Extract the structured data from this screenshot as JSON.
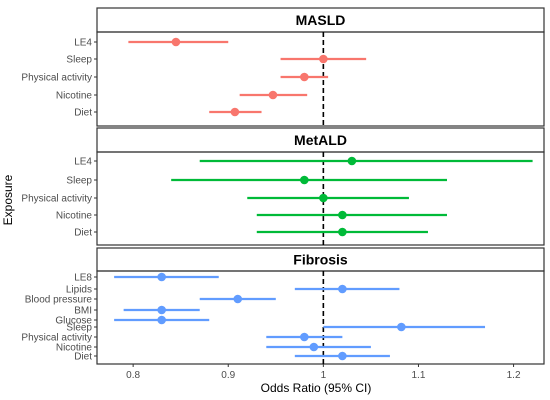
{
  "chart_data": {
    "type": "forest",
    "xlabel": "Odds Ratio (95% CI)",
    "ylabel": "Exposure",
    "x_ticks": [
      "0.8",
      "0.9",
      "1",
      "1.1",
      "1.2"
    ],
    "x_tick_values": [
      0.8,
      0.9,
      1.0,
      1.1,
      1.2
    ],
    "xlim": [
      0.762,
      1.232
    ],
    "reference_line": 1.0,
    "grid": false,
    "panels": [
      {
        "title": "MASLD",
        "color": "#F8766D",
        "rows": [
          {
            "label": "LE4",
            "or": 0.845,
            "lower": 0.795,
            "upper": 0.9
          },
          {
            "label": "Sleep",
            "or": 1.0,
            "lower": 0.955,
            "upper": 1.045
          },
          {
            "label": "Physical activity",
            "or": 0.98,
            "lower": 0.955,
            "upper": 1.005
          },
          {
            "label": "Nicotine",
            "or": 0.947,
            "lower": 0.912,
            "upper": 0.983
          },
          {
            "label": "Diet",
            "or": 0.907,
            "lower": 0.88,
            "upper": 0.935
          }
        ]
      },
      {
        "title": "MetALD",
        "color": "#00BA38",
        "rows": [
          {
            "label": "LE4",
            "or": 1.03,
            "lower": 0.87,
            "upper": 1.22
          },
          {
            "label": "Sleep",
            "or": 0.98,
            "lower": 0.84,
            "upper": 1.13
          },
          {
            "label": "Physical activity",
            "or": 1.0,
            "lower": 0.92,
            "upper": 1.09
          },
          {
            "label": "Nicotine",
            "or": 1.02,
            "lower": 0.93,
            "upper": 1.13
          },
          {
            "label": "Diet",
            "or": 1.02,
            "lower": 0.93,
            "upper": 1.11
          }
        ]
      },
      {
        "title": "Fibrosis",
        "color": "#619CFF",
        "rows": [
          {
            "label": "LE8",
            "or": 0.83,
            "lower": 0.78,
            "upper": 0.89
          },
          {
            "label": "Lipids",
            "or": 1.02,
            "lower": 0.97,
            "upper": 1.08
          },
          {
            "label": "Blood pressure",
            "or": 0.91,
            "lower": 0.87,
            "upper": 0.95
          },
          {
            "label": "BMI",
            "or": 0.83,
            "lower": 0.79,
            "upper": 0.87
          },
          {
            "label": "Glucose",
            "or": 0.83,
            "lower": 0.78,
            "upper": 0.88
          },
          {
            "label": "Sleep",
            "or": 1.082,
            "lower": 1.0,
            "upper": 1.17
          },
          {
            "label": "Physical activity",
            "or": 0.98,
            "lower": 0.94,
            "upper": 1.02
          },
          {
            "label": "Nicotine",
            "or": 0.99,
            "lower": 0.94,
            "upper": 1.05
          },
          {
            "label": "Diet",
            "or": 1.02,
            "lower": 0.97,
            "upper": 1.07
          }
        ]
      }
    ]
  }
}
